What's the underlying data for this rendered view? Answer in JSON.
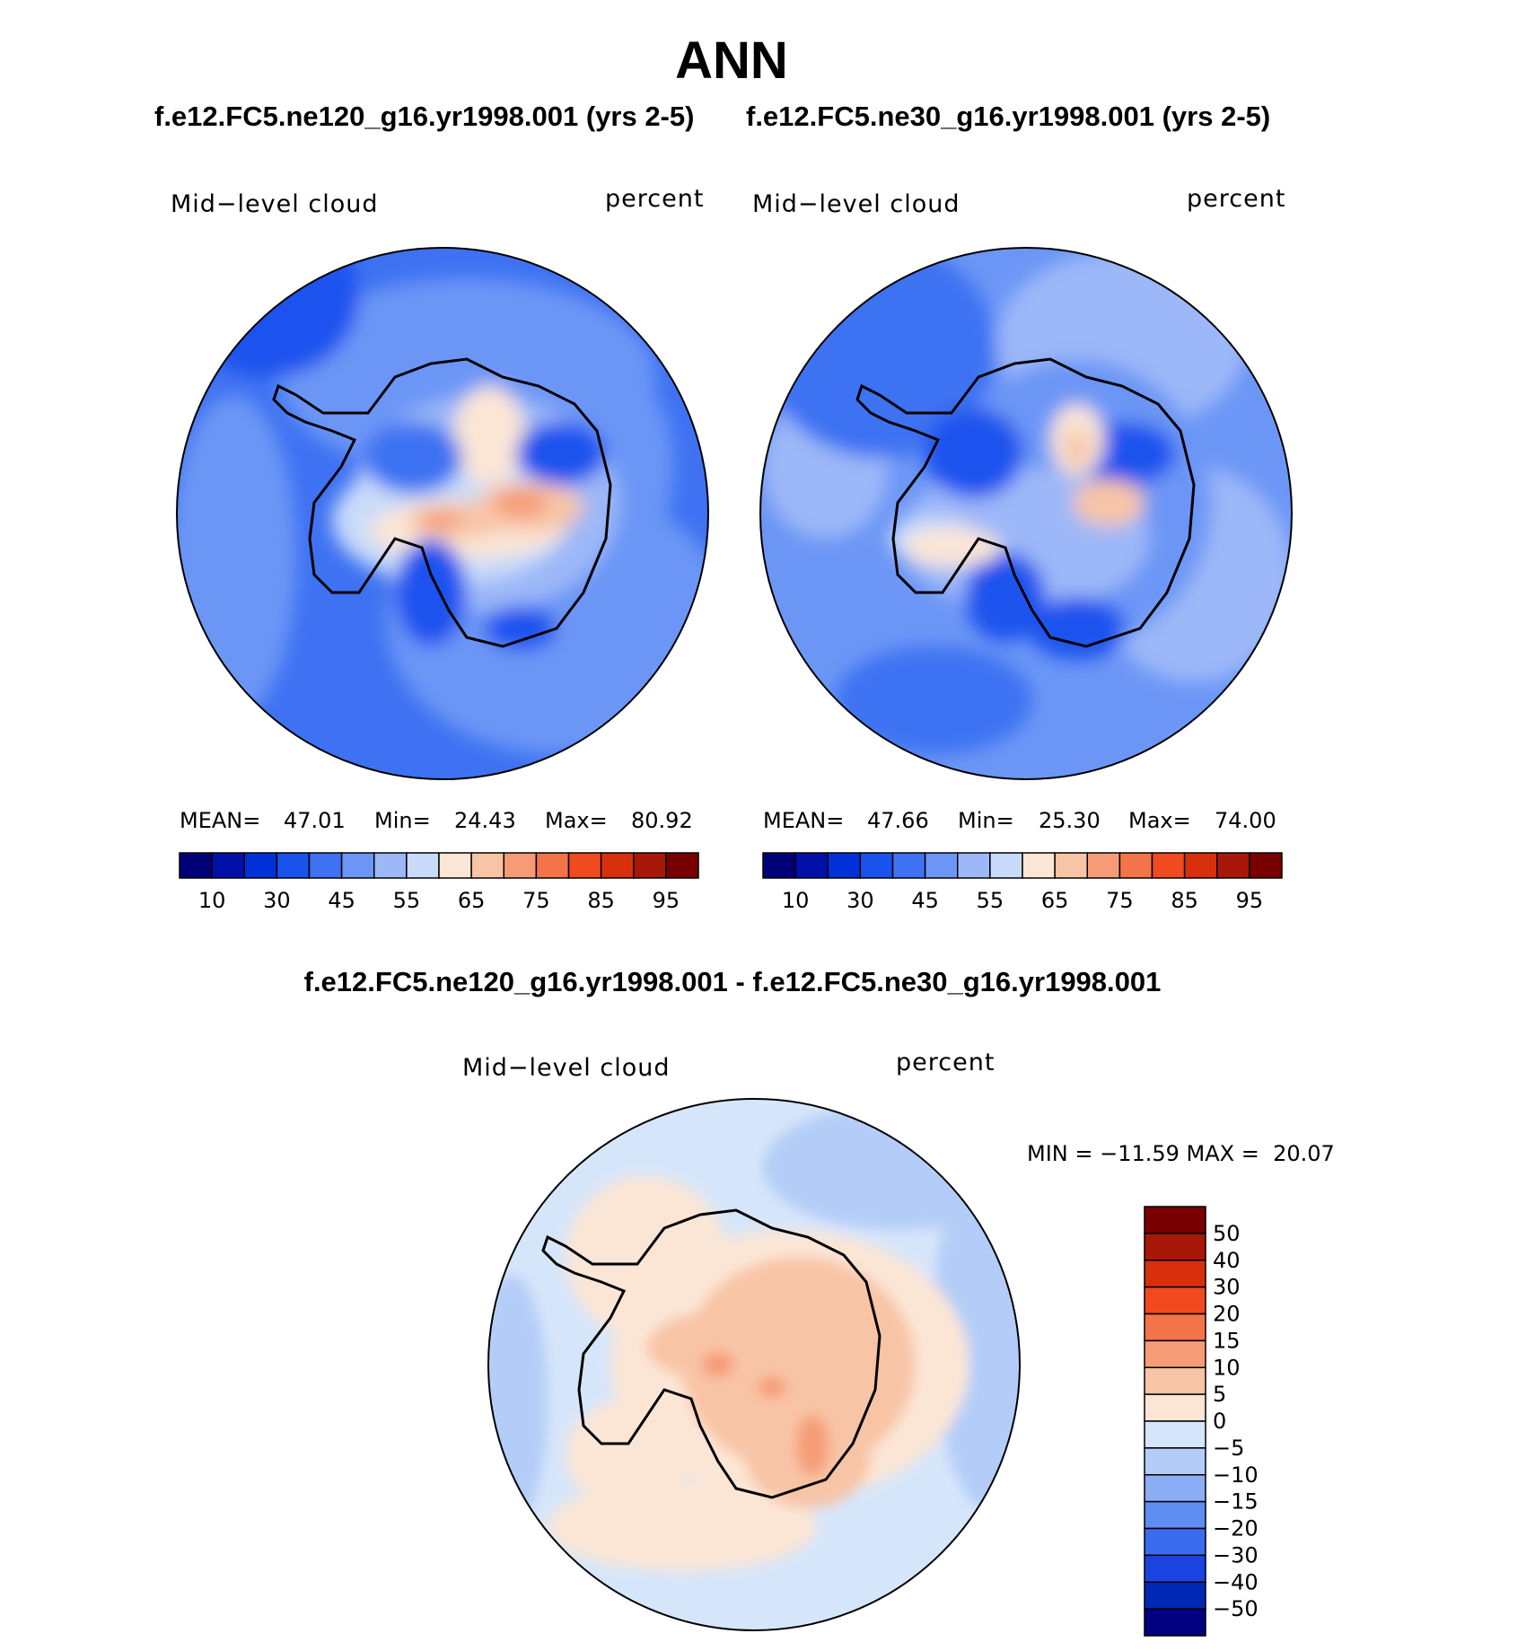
{
  "title": "ANN",
  "panels": [
    {
      "header": "f.e12.FC5.ne120_g16.yr1998.001 (yrs 2-5)",
      "variable_label": "Mid−level cloud",
      "units_label": "percent",
      "stats": {
        "mean_label": "MEAN=",
        "mean": "47.01",
        "min_label": "Min=",
        "min": "24.43",
        "max_label": "Max=",
        "max": "80.92"
      },
      "colorbar_ticks": [
        "10",
        "30",
        "45",
        "55",
        "65",
        "75",
        "85",
        "95"
      ]
    },
    {
      "header": "f.e12.FC5.ne30_g16.yr1998.001 (yrs 2-5)",
      "variable_label": "Mid−level cloud",
      "units_label": "percent",
      "stats": {
        "mean_label": "MEAN=",
        "mean": "47.66",
        "min_label": "Min=",
        "min": "25.30",
        "max_label": "Max=",
        "max": "74.00"
      },
      "colorbar_ticks": [
        "10",
        "30",
        "45",
        "55",
        "65",
        "75",
        "85",
        "95"
      ]
    }
  ],
  "difference": {
    "header": "f.e12.FC5.ne120_g16.yr1998.001 - f.e12.FC5.ne30_g16.yr1998.001",
    "variable_label": "Mid−level cloud",
    "units_label": "percent",
    "stats_text": "MIN = −11.59 MAX =  20.07",
    "colorbar_ticks": [
      "50",
      "40",
      "30",
      "20",
      "15",
      "10",
      "5",
      "0",
      "−5",
      "−10",
      "−15",
      "−20",
      "−30",
      "−40",
      "−50"
    ]
  },
  "palette": {
    "field": [
      "#000078",
      "#0010a8",
      "#0030d8",
      "#1a52ee",
      "#3e72f2",
      "#6c96f6",
      "#9cb8f8",
      "#c9dbfa",
      "#fbe6d6",
      "#f8c4a6",
      "#f59c76",
      "#f37448",
      "#f04a1e",
      "#d8300c",
      "#a81808",
      "#780000"
    ],
    "diff": [
      "#780000",
      "#a81808",
      "#d8300c",
      "#f04a1e",
      "#f37448",
      "#f59c76",
      "#f8c4a6",
      "#fbe6d6",
      "#d6e6fa",
      "#b4cdf8",
      "#8caef5",
      "#5f8ef3",
      "#3a6cf0",
      "#1a44e0",
      "#0028b4",
      "#000080"
    ]
  }
}
